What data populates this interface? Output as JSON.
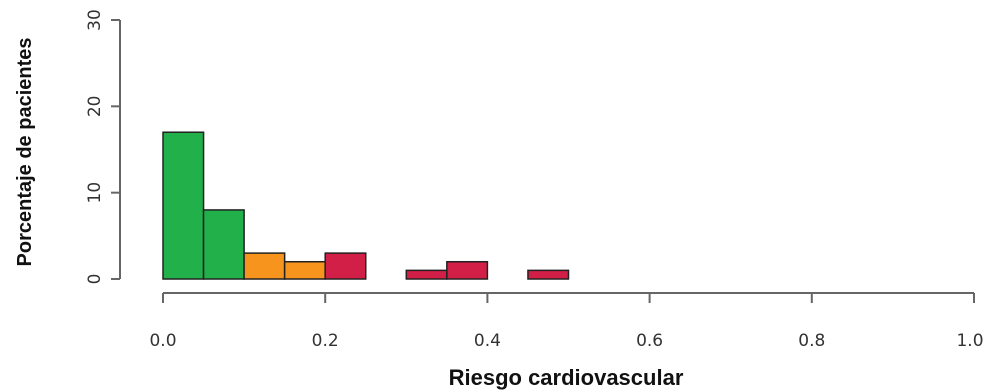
{
  "chart_data": {
    "type": "bar",
    "title": "",
    "xlabel": "Riesgo cardiovascular",
    "ylabel": "Porcentaje de pacientes",
    "xlim": [
      0,
      1
    ],
    "ylim": [
      0,
      30
    ],
    "x_ticks": [
      0.0,
      0.2,
      0.4,
      0.6,
      0.8,
      1.0
    ],
    "x_tick_labels": [
      "0.0",
      "0.2",
      "0.4",
      "0.6",
      "0.8",
      "1.0"
    ],
    "y_ticks": [
      0,
      10,
      20,
      30
    ],
    "y_tick_labels": [
      "0",
      "10",
      "20",
      "30"
    ],
    "grid": false,
    "legend": false,
    "colors": {
      "green": "#22b04b",
      "orange": "#f7941d",
      "red": "#d21f47"
    },
    "bins": [
      {
        "x0": 0.0,
        "x1": 0.05,
        "value": 17,
        "color": "green"
      },
      {
        "x0": 0.05,
        "x1": 0.1,
        "value": 8,
        "color": "green"
      },
      {
        "x0": 0.1,
        "x1": 0.15,
        "value": 3,
        "color": "orange"
      },
      {
        "x0": 0.15,
        "x1": 0.2,
        "value": 2,
        "color": "orange"
      },
      {
        "x0": 0.2,
        "x1": 0.25,
        "value": 3,
        "color": "red"
      },
      {
        "x0": 0.25,
        "x1": 0.3,
        "value": 0,
        "color": "red"
      },
      {
        "x0": 0.3,
        "x1": 0.35,
        "value": 1,
        "color": "red"
      },
      {
        "x0": 0.35,
        "x1": 0.4,
        "value": 2,
        "color": "red"
      },
      {
        "x0": 0.4,
        "x1": 0.45,
        "value": 0,
        "color": "red"
      },
      {
        "x0": 0.45,
        "x1": 0.5,
        "value": 1,
        "color": "red"
      },
      {
        "x0": 0.5,
        "x1": 0.55,
        "value": 0,
        "color": "red"
      },
      {
        "x0": 0.55,
        "x1": 0.6,
        "value": 0,
        "color": "red"
      },
      {
        "x0": 0.6,
        "x1": 0.65,
        "value": 0,
        "color": "red"
      },
      {
        "x0": 0.65,
        "x1": 0.7,
        "value": 0,
        "color": "red"
      },
      {
        "x0": 0.7,
        "x1": 0.75,
        "value": 0,
        "color": "red"
      },
      {
        "x0": 0.75,
        "x1": 0.8,
        "value": 0,
        "color": "red"
      },
      {
        "x0": 0.8,
        "x1": 0.85,
        "value": 0,
        "color": "red"
      },
      {
        "x0": 0.85,
        "x1": 0.9,
        "value": 0,
        "color": "red"
      },
      {
        "x0": 0.9,
        "x1": 0.95,
        "value": 0,
        "color": "red"
      },
      {
        "x0": 0.95,
        "x1": 1.0,
        "value": 0,
        "color": "red"
      }
    ]
  }
}
